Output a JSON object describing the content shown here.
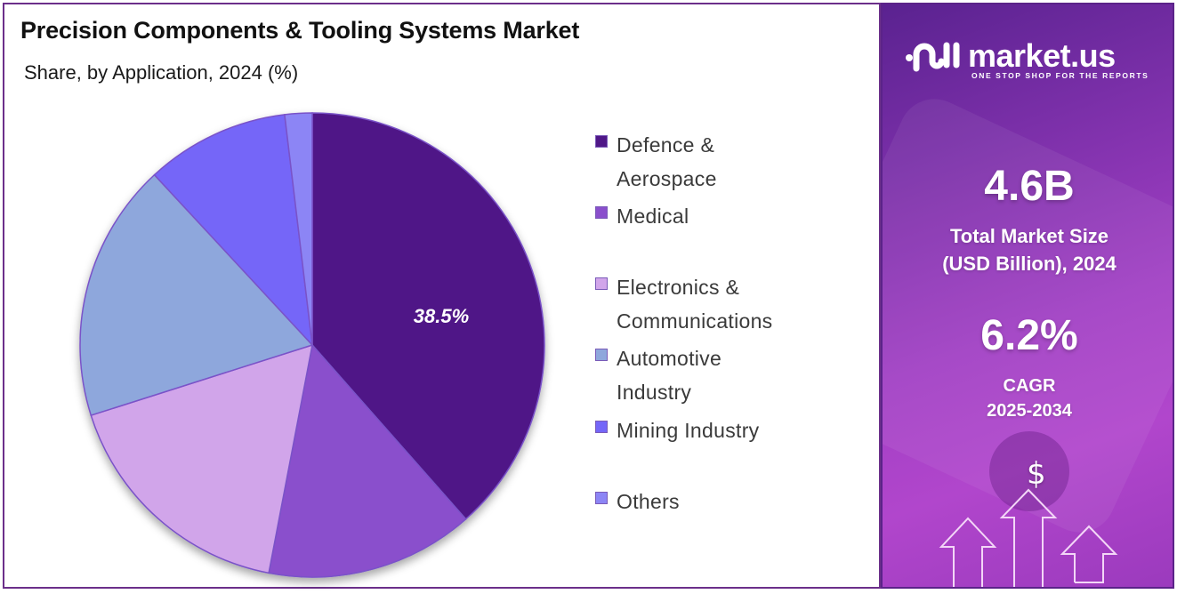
{
  "header": {
    "title": "Precision Components & Tooling Systems Market",
    "subtitle": "Share, by Application, 2024 (%)"
  },
  "legend": [
    {
      "label": "Defence &\nAerospace",
      "color": "#4f1787"
    },
    {
      "label": "Medical",
      "color": "#8a4fcc"
    },
    {
      "label": "Electronics &\nCommunications",
      "color": "#d1a5ea"
    },
    {
      "label": "Automotive\nIndustry",
      "color": "#8ea7dc"
    },
    {
      "label": "Mining Industry",
      "color": "#7466f8"
    },
    {
      "label": "Others",
      "color": "#8c85f5"
    }
  ],
  "pie_label": "38.5%",
  "brand": {
    "name": "market.us",
    "tagline": "ONE STOP SHOP FOR THE REPORTS"
  },
  "stats": {
    "market_size_value": "4.6B",
    "market_size_label": "Total Market Size\n(USD Billion), 2024",
    "cagr_value": "6.2%",
    "cagr_label": "CAGR\n2025-2034"
  },
  "icons": {
    "currency": "$"
  },
  "chart_data": {
    "type": "pie",
    "title": "Precision Components & Tooling Systems Market",
    "subtitle": "Share, by Application, 2024 (%)",
    "categories": [
      "Defence & Aerospace",
      "Medical",
      "Electronics & Communications",
      "Automotive Industry",
      "Mining Industry",
      "Others"
    ],
    "values": [
      38.5,
      14.5,
      17.1,
      18.0,
      10.0,
      1.9
    ],
    "colors": [
      "#4f1787",
      "#8a4fcc",
      "#d1a5ea",
      "#8ea7dc",
      "#7466f8",
      "#8c85f5"
    ],
    "labeled_values": {
      "Defence & Aerospace": 38.5
    },
    "start_angle": "12 o'clock, clockwise",
    "legend_position": "right"
  }
}
